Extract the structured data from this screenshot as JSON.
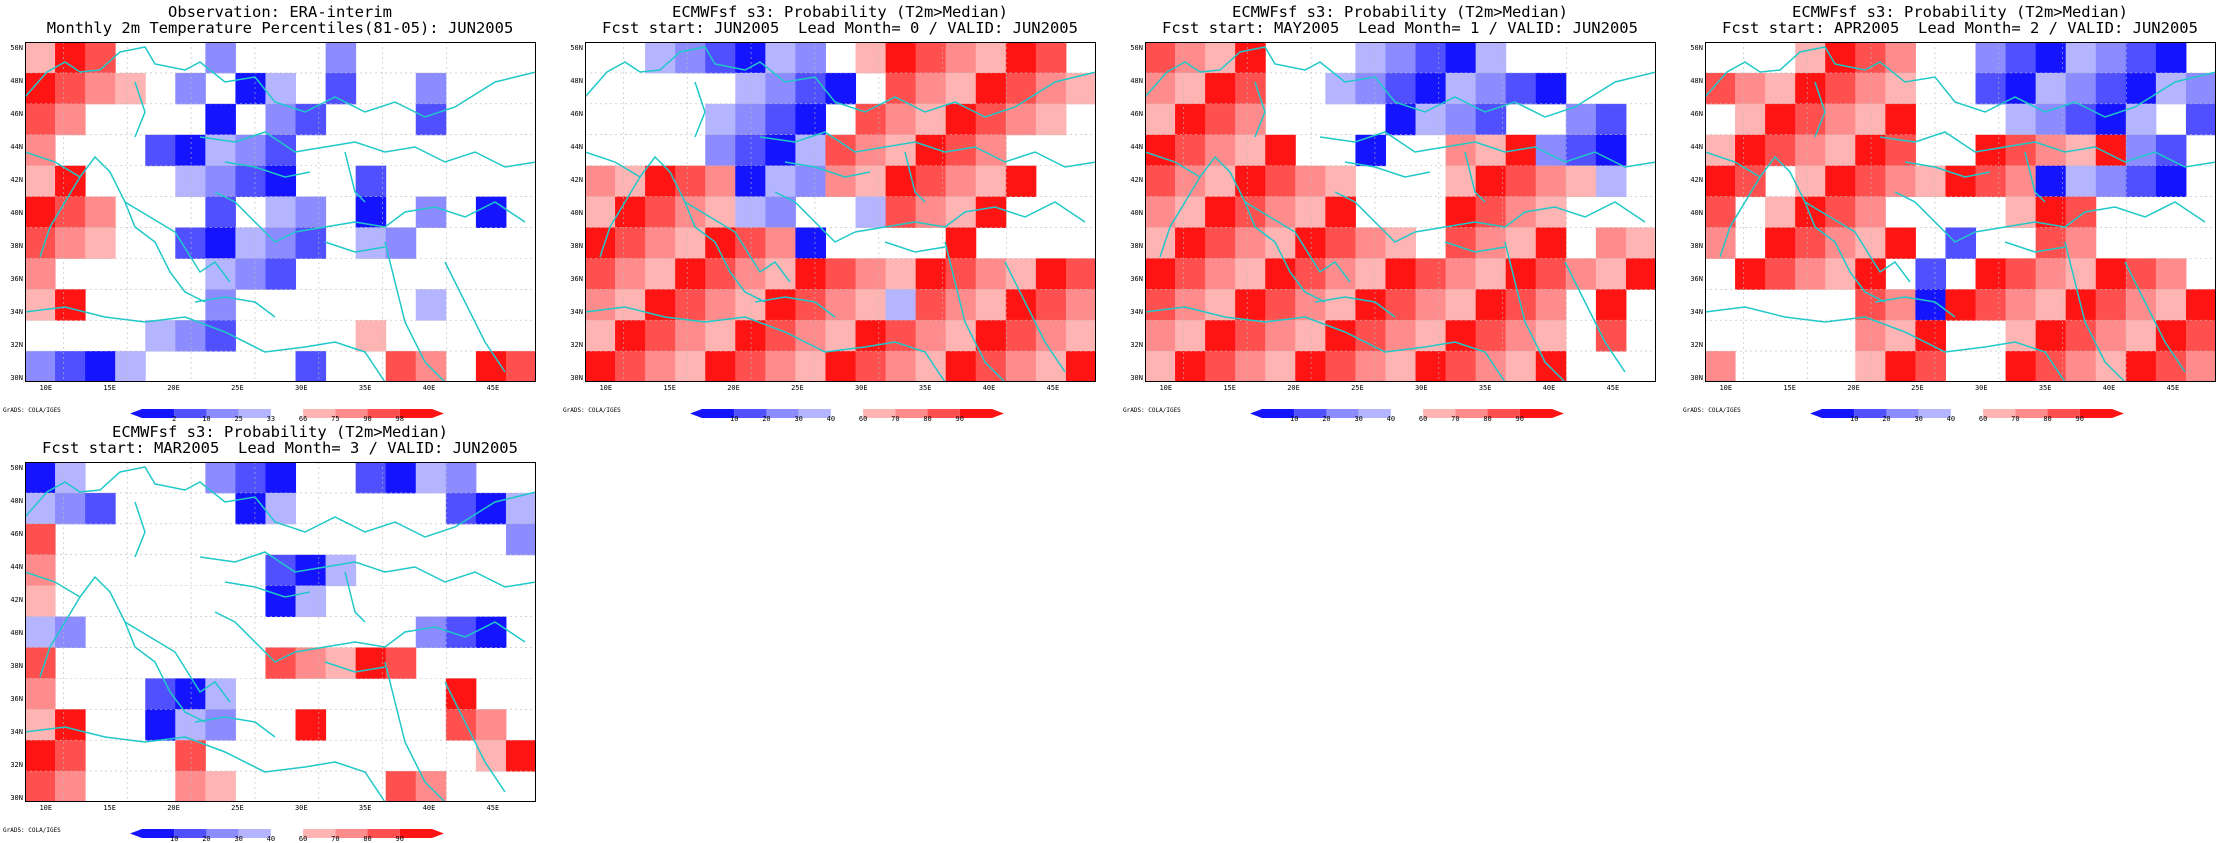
{
  "colors": {
    "coast": "#20c8c8",
    "grid": "#bbbbbb",
    "blue_scale": [
      "#1414ff",
      "#5050ff",
      "#8c8cff",
      "#b4b4ff"
    ],
    "red_scale": [
      "#ffb4b4",
      "#ff8c8c",
      "#ff5050",
      "#ff1414"
    ]
  },
  "map": {
    "lat_ticks": [
      "50N",
      "48N",
      "46N",
      "44N",
      "42N",
      "40N",
      "38N",
      "36N",
      "34N",
      "32N",
      "30N"
    ],
    "lon_ticks": [
      "10E",
      "15E",
      "20E",
      "25E",
      "30E",
      "35E",
      "40E",
      "45E"
    ]
  },
  "credit": "GrADS: COLA/IGES",
  "panels": [
    {
      "title1": "Observation: ERA-interim",
      "title2": "Monthly 2m Temperature Percentiles(81-05): JUN2005",
      "cbar_labels": [
        "2",
        "10",
        "25",
        "33",
        "66",
        "75",
        "90",
        "98"
      ],
      "grid": [
        "RRR000B000B000000",
        "RRRR0B0BB0B00B000",
        "RR0000B0BB000B000",
        "R000BBBBB00000000",
        "RR000BBBB00B00000",
        "RRR000B0BB0B0B0B0",
        "RRR00BBBBB0BB0000",
        "R00000BBB00000000",
        "RR0000B000000B000",
        "0000BBB0000R00000",
        "BBBB00000B00RR0RR"
      ]
    },
    {
      "title1": "ECMWFsf s3: Probability (T2m>Median)",
      "title2": "Fcst start: JUN2005  Lead Month= 0 / VALID: JUN2005",
      "cbar_labels": [
        "10",
        "20",
        "30",
        "40",
        "60",
        "70",
        "80",
        "90"
      ],
      "grid": [
        "00BBBBBB0RRRRRRR0",
        "00000BBBB0RRRRRRR",
        "0000BBBB0RRRRRRR0",
        "0000BBBBRRRRRR000",
        "RRRRRBBBRRRRRRR00",
        "RRRRRBB00BRRRR000",
        "RRRRRRRB0000R0000",
        "RRRRRRRRRRRRRRRRR",
        "RRRRRRRRRRBRRRRRR",
        "RRRRRRRRRRRRRRRRR",
        "RRRRRRRRRRRRRRRRR"
      ]
    },
    {
      "title1": "ECMWFsf s3: Probability (T2m>Median)",
      "title2": "Fcst start: MAY2005  Lead Month= 1 / VALID: JUN2005",
      "cbar_labels": [
        "10",
        "20",
        "30",
        "40",
        "60",
        "70",
        "80",
        "90"
      ],
      "grid": [
        "RRRR000BBBBB00000",
        "RRRR00BBBBBBBB000",
        "RRRR0000BBBB00BB0",
        "RRRRR00B00RRRBBB0",
        "RRRRRRR000RRRRRB0",
        "RRRRRRR000RRRR000",
        "RRRRRRRRR0RRRR0RR",
        "RRRRRRRRRRRRRRRRR",
        "RRRRRRRRRRRRRR0R0",
        "RRRRRRRRRRRRRR0R0",
        "RRRRRRRRRRRRRR000"
      ]
    },
    {
      "title1": "ECMWFsf s3: Probability (T2m>Median)",
      "title2": "Fcst start: APR2005  Lead Month= 2 / VALID: JUN2005",
      "cbar_labels": [
        "10",
        "20",
        "30",
        "40",
        "60",
        "70",
        "80",
        "90"
      ],
      "grid": [
        "000RRRR00BBBBBBB0",
        "RRRRRRR00BBBBBBBB",
        "0RRRRRR000BBBBB0B",
        "RRRRRRR00RRRRRBB0",
        "RR0RRRRRRRRBBBBB0",
        "R0RRRR0000RRR0000",
        "R0RRRRR0B00RR0000",
        "0RRRRR0B0RRRRRRR0",
        "00000RRBRRRRRRRRR",
        "00000RRR00RRRRRRR",
        "R0000RRR00RRRRRRR"
      ]
    },
    {
      "title1": "ECMWFsf s3: Probability (T2m>Median)",
      "title2": "Fcst start: MAR2005  Lead Month= 3 / VALID: JUN2005",
      "cbar_labels": [
        "10",
        "20",
        "30",
        "40",
        "60",
        "70",
        "80",
        "90"
      ],
      "grid": [
        "BB0000BBB00BBBB00",
        "BBB0000BB00000BBB",
        "R000000000000000B",
        "R0000000BBB000000",
        "R0000000BB0000000",
        "BB00000000000BBB0",
        "R0000000RRRRR0000",
        "R000BBB0000000R00",
        "RR00BBB00R0000RR0",
        "RR000R000000000RR",
        "RR000RR00000RR000"
      ]
    }
  ]
}
